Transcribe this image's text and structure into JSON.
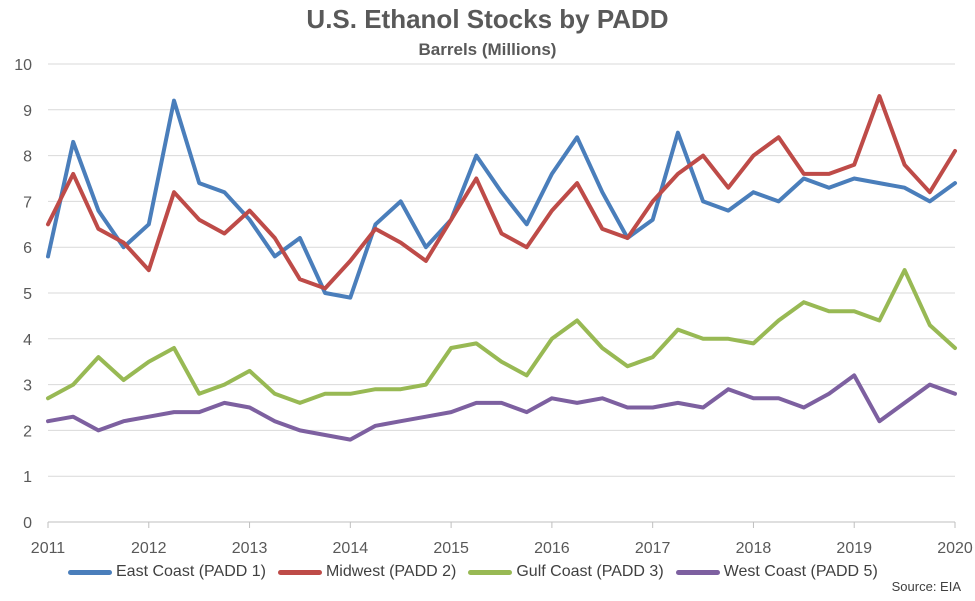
{
  "chart_data": {
    "type": "line",
    "title": "U.S. Ethanol Stocks by PADD",
    "subtitle": "Barrels (Millions)",
    "source": "Source: EIA",
    "xlim": [
      2011,
      2020
    ],
    "ylim": [
      0,
      10
    ],
    "x_ticks": [
      "2011",
      "2012",
      "2013",
      "2014",
      "2015",
      "2016",
      "2017",
      "2018",
      "2019",
      "2020"
    ],
    "y_ticks": [
      "0",
      "1",
      "2",
      "3",
      "4",
      "5",
      "6",
      "7",
      "8",
      "9",
      "10"
    ],
    "grid": true,
    "legend_position": "bottom",
    "x": [
      2011.0,
      2011.25,
      2011.5,
      2011.75,
      2012.0,
      2012.25,
      2012.5,
      2012.75,
      2013.0,
      2013.25,
      2013.5,
      2013.75,
      2014.0,
      2014.25,
      2014.5,
      2014.75,
      2015.0,
      2015.25,
      2015.5,
      2015.75,
      2016.0,
      2016.25,
      2016.5,
      2016.75,
      2017.0,
      2017.25,
      2017.5,
      2017.75,
      2018.0,
      2018.25,
      2018.5,
      2018.75,
      2019.0,
      2019.25,
      2019.5,
      2019.75,
      2020.0
    ],
    "series": [
      {
        "name": "East Coast (PADD 1)",
        "color": "#4a7ebb",
        "values": [
          5.8,
          8.3,
          6.8,
          6.0,
          6.5,
          9.2,
          7.4,
          7.2,
          6.6,
          5.8,
          6.2,
          5.0,
          4.9,
          6.5,
          7.0,
          6.0,
          6.6,
          8.0,
          7.2,
          6.5,
          7.6,
          8.4,
          7.2,
          6.2,
          6.6,
          8.5,
          7.0,
          6.8,
          7.2,
          7.0,
          7.5,
          7.3,
          7.5,
          7.4,
          7.3,
          7.0,
          7.4
        ]
      },
      {
        "name": "Midwest (PADD 2)",
        "color": "#be4b48",
        "values": [
          6.5,
          7.6,
          6.4,
          6.1,
          5.5,
          7.2,
          6.6,
          6.3,
          6.8,
          6.2,
          5.3,
          5.1,
          5.7,
          6.4,
          6.1,
          5.7,
          6.6,
          7.5,
          6.3,
          6.0,
          6.8,
          7.4,
          6.4,
          6.2,
          7.0,
          7.6,
          8.0,
          7.3,
          8.0,
          8.4,
          7.6,
          7.6,
          7.8,
          9.3,
          7.8,
          7.2,
          8.1
        ]
      },
      {
        "name": "Gulf Coast (PADD 3)",
        "color": "#98b954",
        "values": [
          2.7,
          3.0,
          3.6,
          3.1,
          3.5,
          3.8,
          2.8,
          3.0,
          3.3,
          2.8,
          2.6,
          2.8,
          2.8,
          2.9,
          2.9,
          3.0,
          3.8,
          3.9,
          3.5,
          3.2,
          4.0,
          4.4,
          3.8,
          3.4,
          3.6,
          4.2,
          4.0,
          4.0,
          3.9,
          4.4,
          4.8,
          4.6,
          4.6,
          4.4,
          5.5,
          4.3,
          3.8
        ]
      },
      {
        "name": "West Coast (PADD 5)",
        "color": "#7d60a0",
        "values": [
          2.2,
          2.3,
          2.0,
          2.2,
          2.3,
          2.4,
          2.4,
          2.6,
          2.5,
          2.2,
          2.0,
          1.9,
          1.8,
          2.1,
          2.2,
          2.3,
          2.4,
          2.6,
          2.6,
          2.4,
          2.7,
          2.6,
          2.7,
          2.5,
          2.5,
          2.6,
          2.5,
          2.9,
          2.7,
          2.7,
          2.5,
          2.8,
          3.2,
          2.2,
          2.6,
          3.0,
          2.8
        ]
      }
    ]
  }
}
